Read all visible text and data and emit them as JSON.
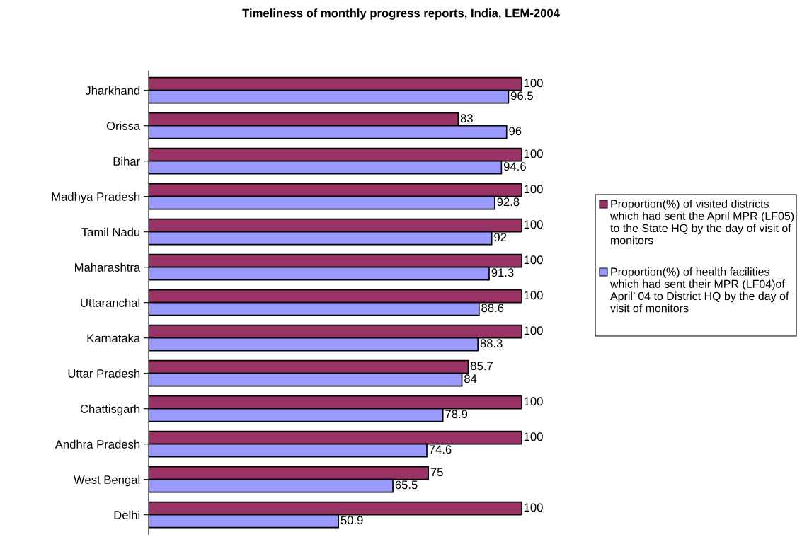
{
  "chart_data": {
    "type": "bar",
    "orientation": "horizontal",
    "title": "Timeliness of monthly progress reports, India, LEM-2004",
    "categories": [
      "Jharkhand",
      "Orissa",
      "Bihar",
      "Madhya Pradesh",
      "Tamil Nadu",
      "Maharashtra",
      "Uttaranchal",
      "Karnataka",
      "Uttar Pradesh",
      "Chattisgarh",
      "Andhra Pradesh",
      "West Bengal",
      "Delhi"
    ],
    "series": [
      {
        "name": "Proportion(%) of visited districts which had sent the April MPR (LF05) to the State HQ by the day of visit of monitors",
        "color": "#993366",
        "values": [
          100,
          83,
          100,
          100,
          100,
          100,
          100,
          100,
          85.7,
          100,
          100,
          75,
          100
        ]
      },
      {
        "name": "Proportion(%) of health facilities which had sent their MPR (LF04)of April’ 04 to District HQ by the day of visit of monitors",
        "color": "#9999ff",
        "values": [
          96.5,
          96,
          94.6,
          92.8,
          92,
          91.3,
          88.6,
          88.3,
          84,
          78.9,
          74.6,
          65.5,
          50.9
        ]
      }
    ],
    "xlim": [
      0,
      100
    ],
    "tick_labels": "y",
    "data_labels": true,
    "legend": "right",
    "grid": false
  }
}
